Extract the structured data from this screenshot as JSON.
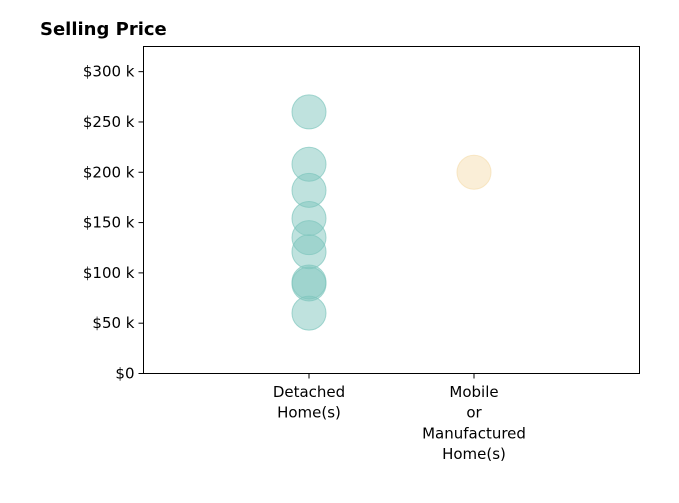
{
  "chart_data": {
    "type": "scatter",
    "title": "Selling Price",
    "xlabel": "",
    "ylabel": "",
    "categories": [
      [
        "Detached",
        "Home(s)"
      ],
      [
        "Mobile",
        "or",
        "Manufactured",
        "Home(s)"
      ]
    ],
    "ylim": [
      0,
      325000
    ],
    "yticks": [
      {
        "value": 0,
        "label": "$0"
      },
      {
        "value": 50000,
        "label": "$50 k"
      },
      {
        "value": 100000,
        "label": "$100 k"
      },
      {
        "value": 150000,
        "label": "$150 k"
      },
      {
        "value": 200000,
        "label": "$200 k"
      },
      {
        "value": 250000,
        "label": "$250 k"
      },
      {
        "value": 300000,
        "label": "$300 k"
      }
    ],
    "grid": false,
    "series": [
      {
        "category": 0,
        "color": "#7fc6bd",
        "values": [
          260000,
          208000,
          182000,
          154000,
          135000,
          121000,
          91000,
          89000,
          60000
        ]
      },
      {
        "category": 1,
        "color": "#f5deb0",
        "values": [
          200000
        ]
      }
    ]
  }
}
